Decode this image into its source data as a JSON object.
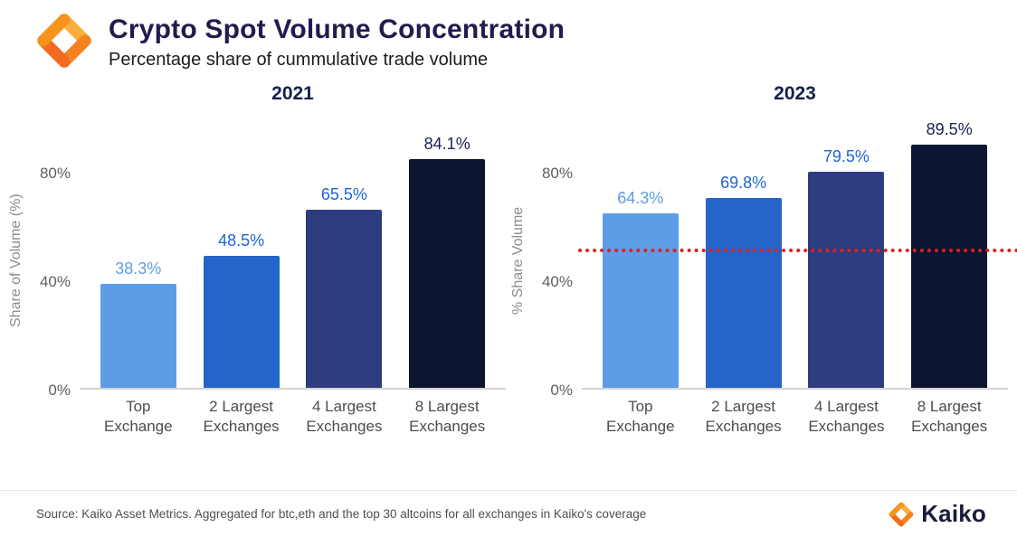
{
  "header": {
    "title": "Crypto Spot Volume Concentration",
    "subtitle": "Percentage share of cummulative trade volume"
  },
  "brand": {
    "accent_orange": "#F7941E"
  },
  "footer": {
    "source": "Source: Kaiko Asset Metrics. Aggregated for btc,eth and the top 30 altcoins for all exchanges in Kaiko's coverage",
    "logo_text": "Kaiko"
  },
  "chart_data": [
    {
      "type": "bar",
      "title": "2021",
      "ylabel": "Share of Volume (%)",
      "xlabel": "",
      "categories": [
        "Top\nExchange",
        "2 Largest\nExchanges",
        "4 Largest\nExchanges",
        "8 Largest\nExchanges"
      ],
      "values": [
        38.3,
        48.5,
        65.5,
        84.1
      ],
      "value_labels": [
        "38.3%",
        "48.5%",
        "65.5%",
        "84.1%"
      ],
      "yticks": [
        0,
        40,
        80
      ],
      "ytick_labels": [
        "0%",
        "40%",
        "80%"
      ],
      "ylim": [
        0,
        95
      ],
      "grid": false,
      "legend": false,
      "bar_colors": [
        "#5d9de6",
        "#2565c9",
        "#2d3d80",
        "#0c1531"
      ],
      "label_colors": [
        "#5d9de6",
        "#1e64d4",
        "#1e64d4",
        "#1a2150"
      ]
    },
    {
      "type": "bar",
      "title": "2023",
      "ylabel": "% Share Volume",
      "xlabel": "",
      "categories": [
        "Top\nExchange",
        "2 Largest\nExchanges",
        "4 Largest\nExchanges",
        "8 Largest\nExchanges"
      ],
      "values": [
        64.3,
        69.8,
        79.5,
        89.5
      ],
      "value_labels": [
        "64.3%",
        "69.8%",
        "79.5%",
        "89.5%"
      ],
      "yticks": [
        0,
        40,
        80
      ],
      "ytick_labels": [
        "0%",
        "40%",
        "80%"
      ],
      "ylim": [
        0,
        95
      ],
      "grid": false,
      "legend": false,
      "bar_colors": [
        "#5d9de6",
        "#2565c9",
        "#2d3d80",
        "#0c1531"
      ],
      "label_colors": [
        "#5d9de6",
        "#1e64d4",
        "#1e64d4",
        "#1a2150"
      ],
      "reference_line": {
        "value": 50,
        "color": "#e01f1f",
        "style": "dotted"
      }
    }
  ]
}
